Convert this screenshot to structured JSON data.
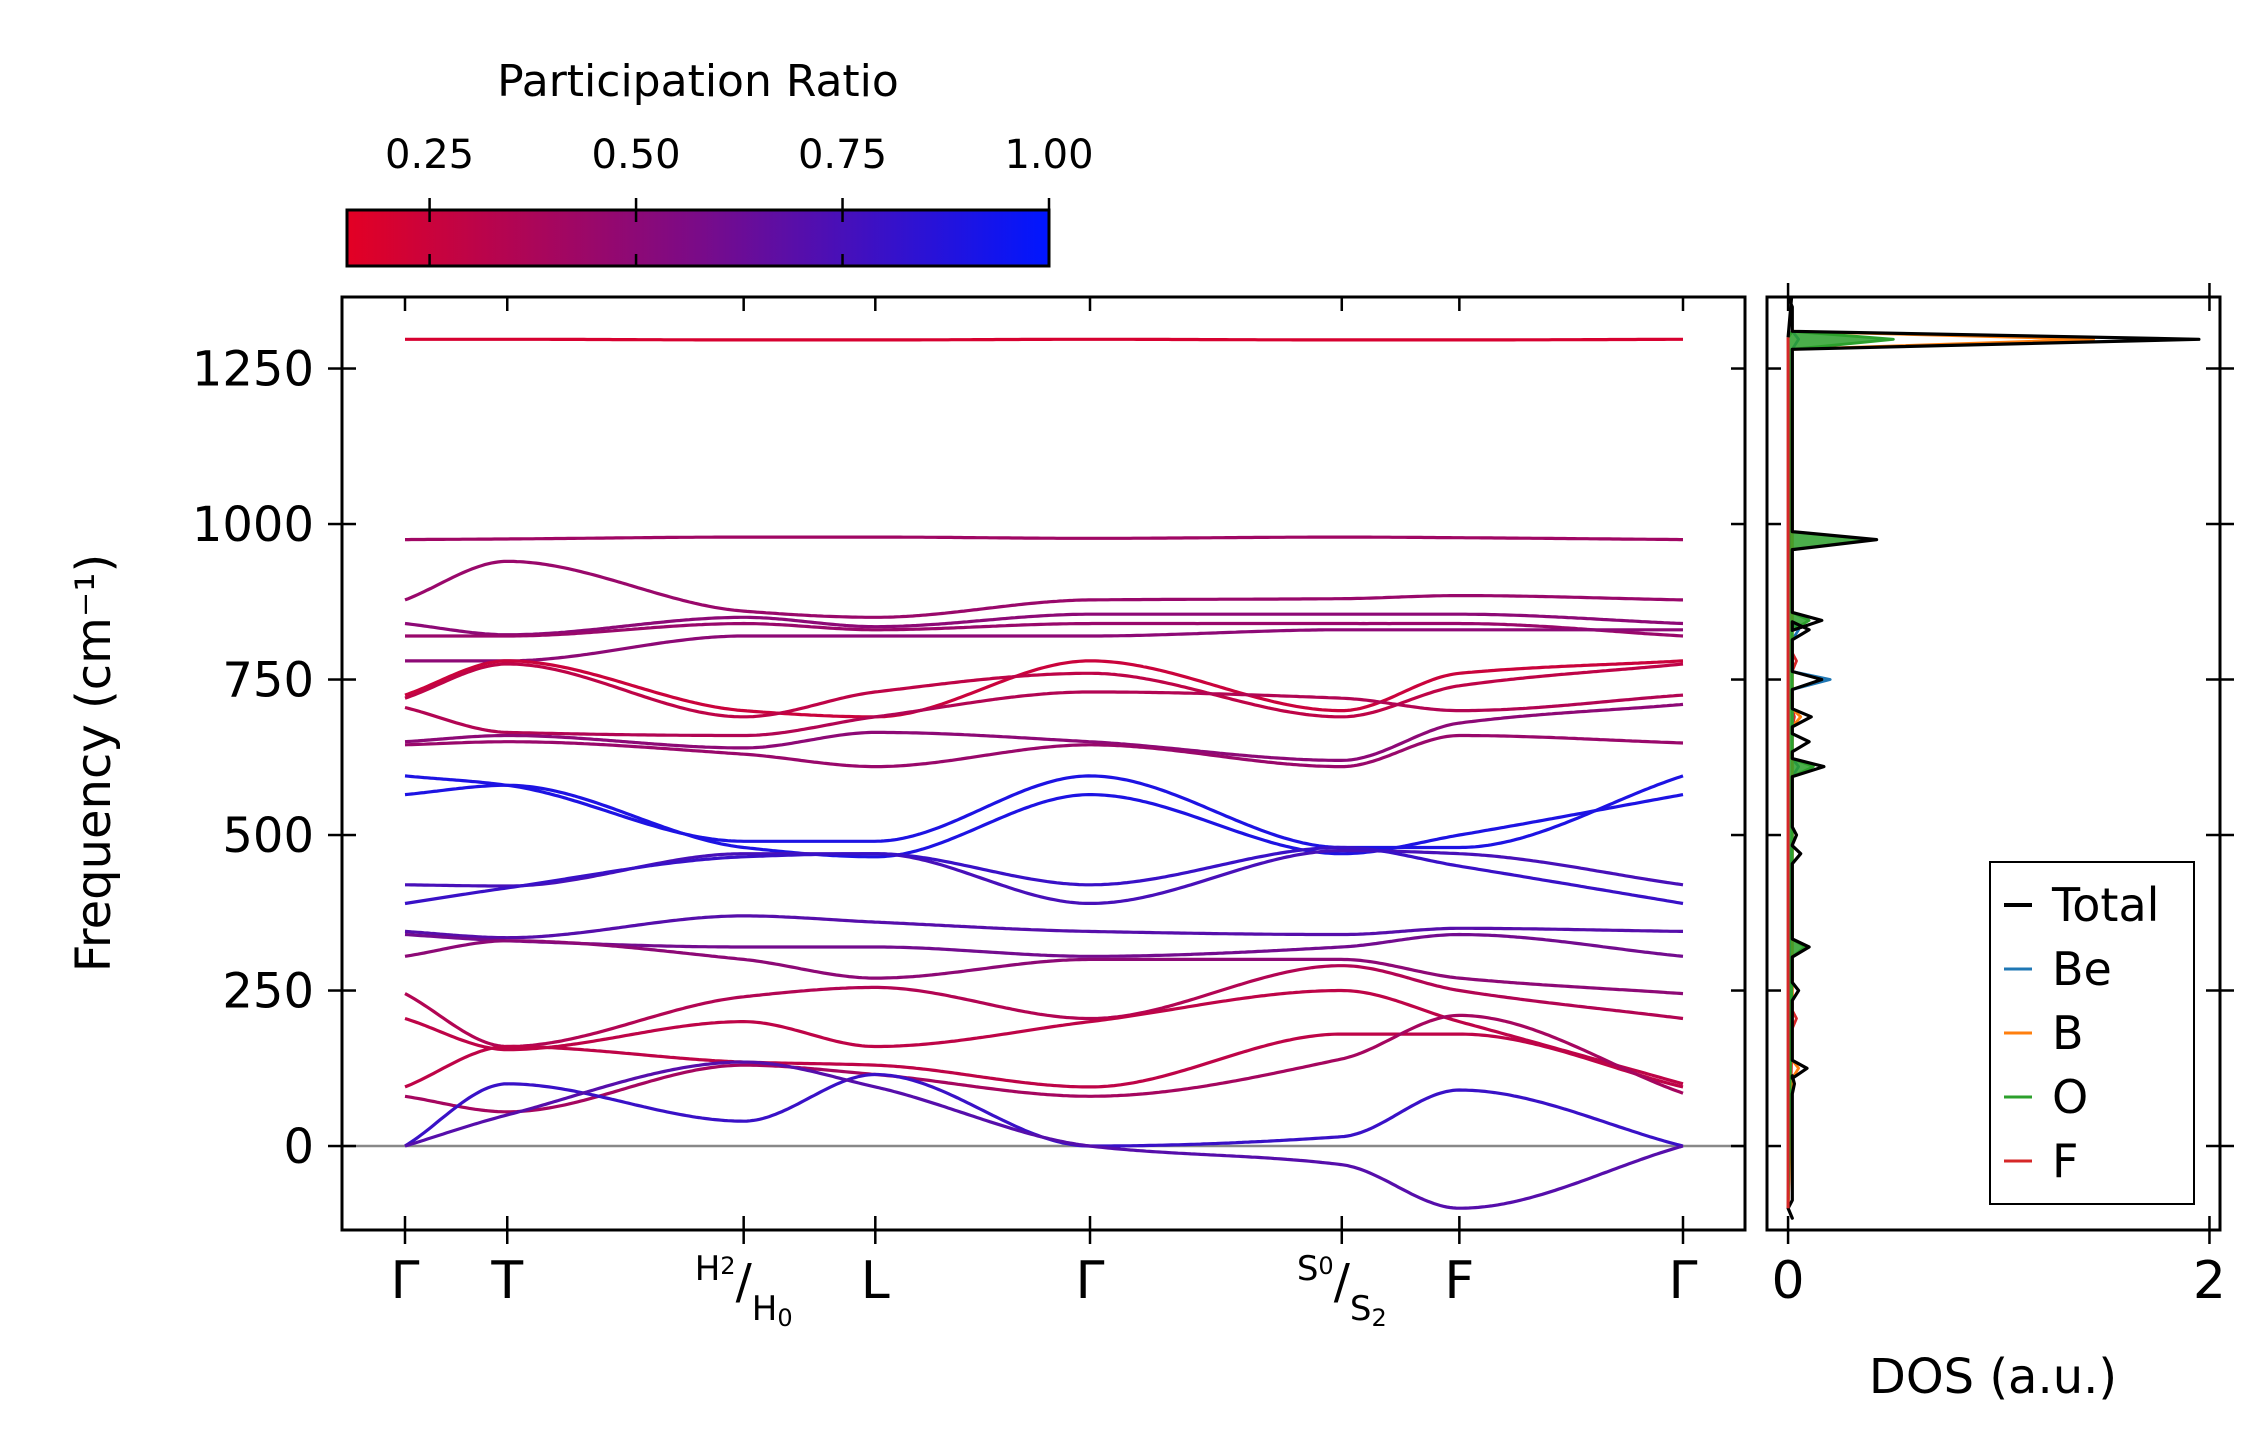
{
  "colorbar": {
    "title": "Participation Ratio",
    "ticks": [
      0.25,
      0.5,
      0.75,
      1.0
    ],
    "tick_labels": [
      "0.25",
      "0.50",
      "0.75",
      "1.00"
    ],
    "range": [
      0.15,
      1.0
    ],
    "color_low": "#e30024",
    "color_mid": "#7a0b88",
    "color_high": "#0016ff"
  },
  "chart_data": [
    {
      "type": "line",
      "name": "phonon-band-structure",
      "ylabel": "Frequency (cm⁻¹)",
      "xlabel": "",
      "ylim": [
        -135,
        1365
      ],
      "yticks": [
        0,
        250,
        500,
        750,
        1000,
        1250
      ],
      "ytick_labels": [
        "0",
        "250",
        "500",
        "750",
        "1000",
        "1250"
      ],
      "kpath": [
        {
          "label": "Γ",
          "pos": 0.0
        },
        {
          "label": "T",
          "pos": 0.08
        },
        {
          "label": "H₂/H₀",
          "pos": 0.265,
          "sup": "H2",
          "sub": "H0"
        },
        {
          "label": "L",
          "pos": 0.368
        },
        {
          "label": "Γ",
          "pos": 0.536
        },
        {
          "label": "S₀/S₂",
          "pos": 0.733,
          "sup": "S0",
          "sub": "S2"
        },
        {
          "label": "F",
          "pos": 0.825
        },
        {
          "label": "Γ",
          "pos": 1.0
        }
      ],
      "zero_line": 0,
      "bands": [
        {
          "values": [
            1297,
            1297,
            1296,
            1296,
            1297,
            1296,
            1296,
            1297
          ],
          "pr": 0.2
        },
        {
          "values": [
            975,
            976,
            979,
            979,
            977,
            979,
            978,
            975
          ],
          "pr": 0.42
        },
        {
          "values": [
            878,
            940,
            860,
            850,
            878,
            880,
            885,
            878
          ],
          "pr": 0.45
        },
        {
          "values": [
            840,
            822,
            850,
            835,
            855,
            855,
            855,
            840
          ],
          "pr": 0.5
        },
        {
          "values": [
            820,
            820,
            840,
            830,
            840,
            840,
            840,
            820
          ],
          "pr": 0.45
        },
        {
          "values": [
            780,
            780,
            820,
            820,
            820,
            830,
            830,
            830
          ],
          "pr": 0.5
        },
        {
          "values": [
            725,
            780,
            700,
            690,
            780,
            700,
            760,
            780
          ],
          "pr": 0.25
        },
        {
          "values": [
            720,
            775,
            690,
            730,
            760,
            690,
            740,
            775
          ],
          "pr": 0.3
        },
        {
          "values": [
            705,
            665,
            660,
            690,
            730,
            720,
            700,
            725
          ],
          "pr": 0.35
        },
        {
          "values": [
            650,
            660,
            640,
            665,
            650,
            620,
            680,
            710
          ],
          "pr": 0.5
        },
        {
          "values": [
            645,
            650,
            630,
            610,
            645,
            610,
            660,
            648
          ],
          "pr": 0.45
        },
        {
          "values": [
            595,
            580,
            490,
            490,
            595,
            480,
            480,
            595
          ],
          "pr": 0.9
        },
        {
          "values": [
            565,
            580,
            480,
            465,
            565,
            470,
            500,
            565
          ],
          "pr": 0.9
        },
        {
          "values": [
            420,
            418,
            470,
            470,
            390,
            475,
            470,
            420
          ],
          "pr": 0.75
        },
        {
          "values": [
            390,
            415,
            465,
            470,
            420,
            480,
            450,
            390
          ],
          "pr": 0.8
        },
        {
          "values": [
            345,
            335,
            370,
            360,
            345,
            340,
            350,
            345
          ],
          "pr": 0.7
        },
        {
          "values": [
            340,
            330,
            320,
            320,
            305,
            320,
            340,
            305
          ],
          "pr": 0.6
        },
        {
          "values": [
            305,
            330,
            300,
            270,
            300,
            300,
            270,
            245
          ],
          "pr": 0.5
        },
        {
          "values": [
            245,
            160,
            240,
            255,
            205,
            290,
            250,
            205
          ],
          "pr": 0.35
        },
        {
          "values": [
            205,
            155,
            200,
            160,
            200,
            250,
            200,
            100
          ],
          "pr": 0.3
        },
        {
          "values": [
            95,
            160,
            135,
            130,
            95,
            180,
            180,
            95
          ],
          "pr": 0.3
        },
        {
          "values": [
            80,
            55,
            130,
            115,
            80,
            140,
            210,
            85
          ],
          "pr": 0.4
        },
        {
          "values": [
            0,
            100,
            40,
            115,
            0,
            15,
            90,
            0
          ],
          "pr": 0.8
        },
        {
          "values": [
            0,
            50,
            135,
            95,
            0,
            -30,
            -100,
            0
          ],
          "pr": 0.7
        }
      ]
    },
    {
      "type": "line",
      "name": "phonon-dos",
      "xlabel": "DOS (a.u.)",
      "xlim": [
        -0.1,
        2.05
      ],
      "xticks": [
        0,
        2
      ],
      "xtick_labels": [
        "0",
        "2"
      ],
      "ylim": [
        -135,
        1365
      ],
      "legend": {
        "placement": "bottom-right",
        "entries": [
          "Total",
          "Be",
          "B",
          "O",
          "F"
        ]
      },
      "series": [
        {
          "name": "Total",
          "color": "#000000",
          "points": [
            [
              -100,
              0.0
            ],
            [
              100,
              0.03
            ],
            [
              125,
              0.09
            ],
            [
              250,
              0.05
            ],
            [
              320,
              0.1
            ],
            [
              470,
              0.06
            ],
            [
              500,
              0.04
            ],
            [
              610,
              0.17
            ],
            [
              650,
              0.1
            ],
            [
              690,
              0.11
            ],
            [
              750,
              0.16
            ],
            [
              830,
              0.1
            ],
            [
              845,
              0.16
            ],
            [
              975,
              0.42
            ],
            [
              1297,
              1.95
            ],
            [
              1365,
              0.0
            ]
          ]
        },
        {
          "name": "Be",
          "color": "#1f77b4",
          "points": [
            [
              610,
              0.05
            ],
            [
              750,
              0.2
            ],
            [
              830,
              0.05
            ],
            [
              1297,
              0.05
            ]
          ]
        },
        {
          "name": "B",
          "color": "#ff7f0e",
          "points": [
            [
              125,
              0.05
            ],
            [
              690,
              0.06
            ],
            [
              1297,
              1.45
            ]
          ]
        },
        {
          "name": "O",
          "color": "#2ca02c",
          "points": [
            [
              320,
              0.08
            ],
            [
              610,
              0.12
            ],
            [
              845,
              0.1
            ],
            [
              975,
              0.4
            ],
            [
              1297,
              0.5
            ]
          ]
        },
        {
          "name": "F",
          "color": "#d62728",
          "points": [
            [
              205,
              0.04
            ],
            [
              690,
              0.03
            ],
            [
              780,
              0.04
            ]
          ]
        }
      ]
    }
  ]
}
